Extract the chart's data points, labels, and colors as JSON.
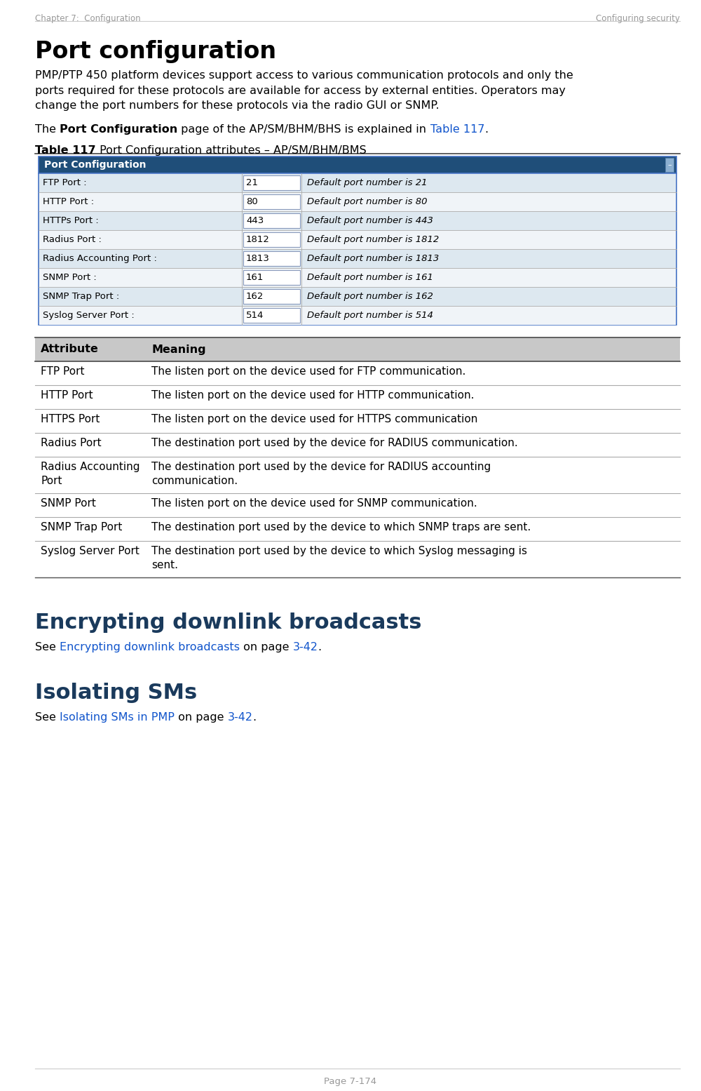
{
  "page_header_left": "Chapter 7:  Configuration",
  "page_header_right": "Configuring security",
  "section_title": "Port configuration",
  "intro_text": "PMP/PTP 450 platform devices support access to various communication protocols and only the\nports required for these protocols are available for access by external entities. Operators may\nchange the port numbers for these protocols via the radio GUI or SNMP.",
  "ref_text_before": "The ",
  "ref_text_bold": "Port Configuration",
  "ref_text_after": " page of the AP/SM/BHM/BHS is explained in ",
  "ref_link": "Table 117",
  "ref_text_end": ".",
  "table_caption_bold": "Table 117",
  "table_caption_normal": " Port Configuration attributes – AP/SM/BHM/BMS",
  "screenshot_header": "Port Configuration",
  "screenshot_rows": [
    {
      "label": "FTP Port :",
      "value": "21",
      "desc": "Default port number is 21"
    },
    {
      "label": "HTTP Port :",
      "value": "80",
      "desc": "Default port number is 80"
    },
    {
      "label": "HTTPs Port :",
      "value": "443",
      "desc": "Default port number is 443"
    },
    {
      "label": "Radius Port :",
      "value": "1812",
      "desc": "Default port number is 1812"
    },
    {
      "label": "Radius Accounting Port :",
      "value": "1813",
      "desc": "Default port number is 1813"
    },
    {
      "label": "SNMP Port :",
      "value": "161",
      "desc": "Default port number is 161"
    },
    {
      "label": "SNMP Trap Port :",
      "value": "162",
      "desc": "Default port number is 162"
    },
    {
      "label": "Syslog Server Port :",
      "value": "514",
      "desc": "Default port number is 514"
    }
  ],
  "table_header": [
    "Attribute",
    "Meaning"
  ],
  "table_rows": [
    {
      "attr": "FTP Port",
      "meaning": "The listen port on the device used for FTP communication."
    },
    {
      "attr": "HTTP Port",
      "meaning": "The listen port on the device used for HTTP communication."
    },
    {
      "attr": "HTTPS Port",
      "meaning": "The listen port on the device used for HTTPS communication"
    },
    {
      "attr": "Radius Port",
      "meaning": "The destination port used by the device for RADIUS communication."
    },
    {
      "attr": "Radius Accounting\nPort",
      "meaning": "The destination port used by the device for RADIUS accounting\ncommunication."
    },
    {
      "attr": "SNMP Port",
      "meaning": "The listen port on the device used for SNMP communication."
    },
    {
      "attr": "SNMP Trap Port",
      "meaning": "The destination port used by the device to which SNMP traps are sent."
    },
    {
      "attr": "Syslog Server Port",
      "meaning": "The destination port used by the device to which Syslog messaging is\nsent."
    }
  ],
  "section2_title": "Encrypting downlink broadcasts",
  "section2_para": [
    {
      "text": "See ",
      "style": "normal"
    },
    {
      "text": "Encrypting downlink broadcasts",
      "style": "link"
    },
    {
      "text": " on page ",
      "style": "normal"
    },
    {
      "text": "3-42",
      "style": "link"
    },
    {
      "text": ".",
      "style": "normal"
    }
  ],
  "section3_title": "Isolating SMs",
  "section3_para": [
    {
      "text": "See ",
      "style": "normal"
    },
    {
      "text": "Isolating SMs in PMP",
      "style": "link"
    },
    {
      "text": " on page ",
      "style": "normal"
    },
    {
      "text": "3-42",
      "style": "link"
    },
    {
      "text": ".",
      "style": "normal"
    }
  ],
  "page_footer": "Page 7-174",
  "bg_color": "#ffffff",
  "link_color": "#1155cc",
  "screenshot_header_bg": "#1f4e79",
  "screenshot_header_fg": "#ffffff",
  "screenshot_row_bg_even": "#dde8f0",
  "screenshot_row_bg_odd": "#f0f4f8",
  "screenshot_border": "#4472c4",
  "table_header_bg": "#c8c8c8",
  "table_row_line": "#aaaaaa",
  "text_color": "#000000",
  "header_text_color": "#999999",
  "section_title_color": "#1a3a5c"
}
